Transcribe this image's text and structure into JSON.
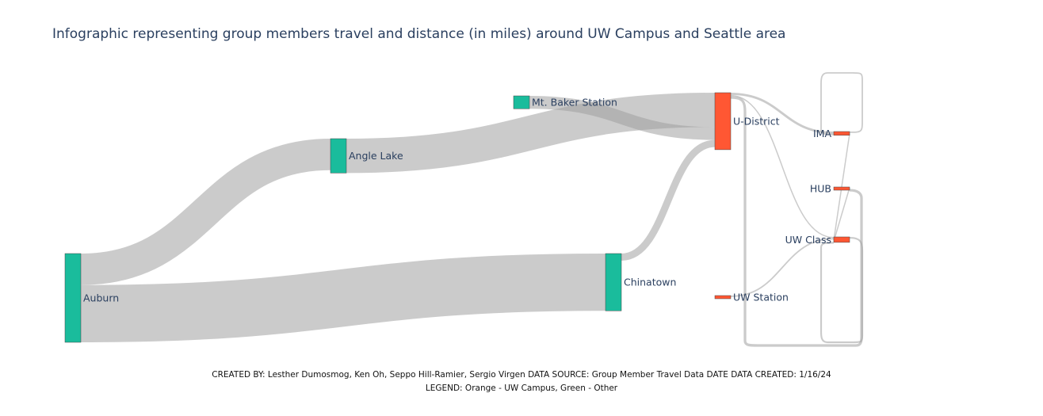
{
  "title": "Infographic representing group members travel and distance (in miles) around UW Campus and Seattle area",
  "footer": {
    "credits": "CREATED BY: Lesther Dumosmog, Ken Oh, Seppo Hill-Ramier, Sergio Virgen DATA SOURCE: Group Member Travel Data DATE DATA CREATED: 1/16/24",
    "legend": "LEGEND: Orange - UW Campus, Green - Other"
  },
  "colors": {
    "other": "#1abc9c",
    "uw_campus": "#ff5733",
    "link": "#a0a0a0"
  },
  "chart_data": {
    "type": "sankey",
    "nodes": [
      {
        "id": "auburn",
        "label": "Auburn",
        "group": "other"
      },
      {
        "id": "angle_lake",
        "label": "Angle Lake",
        "group": "other"
      },
      {
        "id": "mt_baker",
        "label": "Mt. Baker Station",
        "group": "other"
      },
      {
        "id": "chinatown",
        "label": "Chinatown",
        "group": "other"
      },
      {
        "id": "u_district",
        "label": "U-District",
        "group": "uw_campus"
      },
      {
        "id": "uw_station",
        "label": "UW Station",
        "group": "uw_campus"
      },
      {
        "id": "ima",
        "label": "IMA",
        "group": "uw_campus"
      },
      {
        "id": "hub",
        "label": "HUB",
        "group": "uw_campus"
      },
      {
        "id": "uw_class",
        "label": "UW Class",
        "group": "uw_campus"
      }
    ],
    "links": [
      {
        "source": "auburn",
        "target": "angle_lake",
        "value": 11
      },
      {
        "source": "auburn",
        "target": "chinatown",
        "value": 20
      },
      {
        "source": "angle_lake",
        "target": "u_district",
        "value": 12
      },
      {
        "source": "mt_baker",
        "target": "u_district",
        "value": 4.5
      },
      {
        "source": "chinatown",
        "target": "u_district",
        "value": 2.5
      },
      {
        "source": "u_district",
        "target": "ima",
        "value": 0.8
      },
      {
        "source": "u_district",
        "target": "uw_class",
        "value": 0.4
      },
      {
        "source": "u_district",
        "target": "u_district",
        "value": 0.9
      },
      {
        "source": "uw_station",
        "target": "uw_class",
        "value": 0.5
      },
      {
        "source": "ima",
        "target": "ima",
        "value": 0.5
      },
      {
        "source": "ima",
        "target": "uw_class",
        "value": 0.3
      },
      {
        "source": "hub",
        "target": "uw_class",
        "value": 0.1
      },
      {
        "source": "uw_class",
        "target": "uw_class",
        "value": 0.6
      }
    ]
  }
}
